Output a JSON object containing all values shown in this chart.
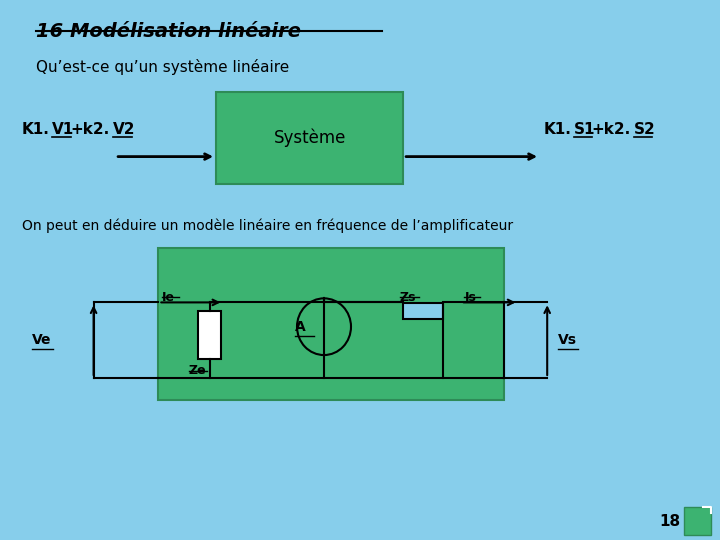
{
  "bg_color": "#87CEEB",
  "title": "16 Modélisation linéaire",
  "subtitle": "Qu’est-ce qu’un système linéaire",
  "green_box_color": "#3CB371",
  "green_box_edge": "#2E8B57",
  "system_label": "Système",
  "second_title": "On peut en déduire un modèle linéaire en fréquence de l’amplificateur",
  "page_number": "18"
}
